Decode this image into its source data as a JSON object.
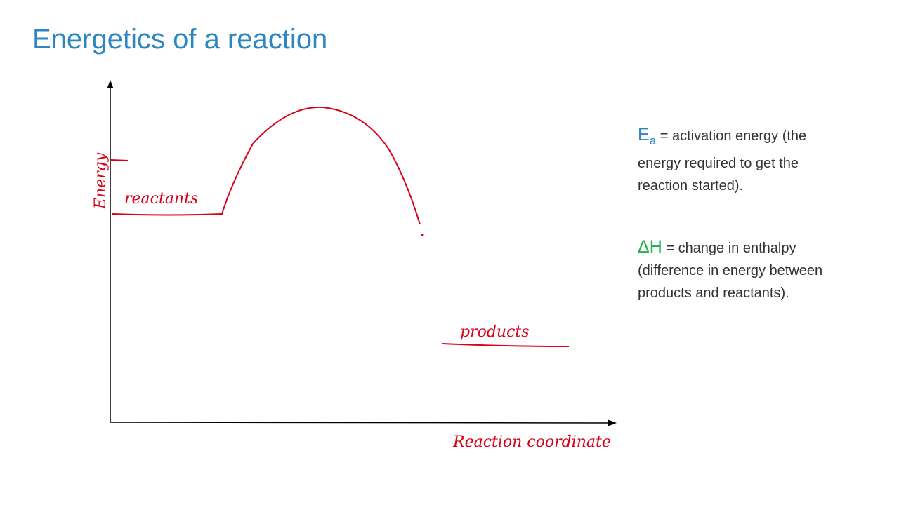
{
  "title": "Energetics of a reaction",
  "diagram": {
    "y_axis_label": "Energy",
    "x_axis_label": "Reaction coordinate",
    "reactants_label": "reactants",
    "products_label": "products"
  },
  "definitions": [
    {
      "symbol": "E",
      "subscript": "a",
      "text": "= activation energy (the energy required to get the reaction started)."
    },
    {
      "symbol": "ΔH",
      "text": "= change in enthalpy (difference in energy between products and reactants)."
    }
  ]
}
